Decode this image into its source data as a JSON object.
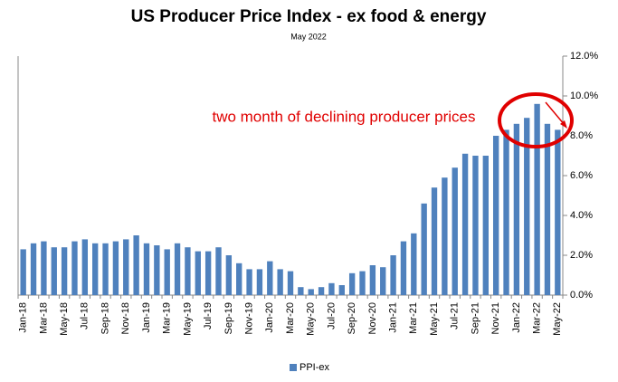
{
  "chart_data": {
    "type": "bar",
    "title": "US Producer Price Index - ex food & energy",
    "subtitle": "May 2022",
    "annotation": "two month of declining producer prices",
    "categories": [
      "Jan-18",
      null,
      "Mar-18",
      null,
      "May-18",
      null,
      "Jul-18",
      null,
      "Sep-18",
      null,
      "Nov-18",
      null,
      "Jan-19",
      null,
      "Mar-19",
      null,
      "May-19",
      null,
      "Jul-19",
      null,
      "Sep-19",
      null,
      "Nov-19",
      null,
      "Jan-20",
      null,
      "Mar-20",
      null,
      "May-20",
      null,
      "Jul-20",
      null,
      "Sep-20",
      null,
      "Nov-20",
      null,
      "Jan-21",
      null,
      "Mar-21",
      null,
      "May-21",
      null,
      "Jul-21",
      null,
      "Sep-21",
      null,
      "Nov-21",
      null,
      "Jan-22",
      null,
      "Mar-22",
      null,
      "May-22"
    ],
    "series": [
      {
        "name": "PPI-ex",
        "color": "#4f81bd",
        "values": [
          2.3,
          2.6,
          2.7,
          2.4,
          2.4,
          2.7,
          2.8,
          2.6,
          2.6,
          2.7,
          2.8,
          3.0,
          2.6,
          2.5,
          2.3,
          2.6,
          2.4,
          2.2,
          2.2,
          2.4,
          2.0,
          1.6,
          1.3,
          1.3,
          1.7,
          1.3,
          1.2,
          0.4,
          0.3,
          0.4,
          0.6,
          0.5,
          1.1,
          1.2,
          1.5,
          1.4,
          2.0,
          2.7,
          3.1,
          4.6,
          5.4,
          5.9,
          6.4,
          7.1,
          7.0,
          7.0,
          8.0,
          8.3,
          8.6,
          8.9,
          9.6,
          8.6,
          8.3
        ]
      }
    ],
    "ylim": [
      0,
      12
    ],
    "yticks": [
      {
        "value": 0,
        "label": "0.0%"
      },
      {
        "value": 2,
        "label": "2.0%"
      },
      {
        "value": 4,
        "label": "4.0%"
      },
      {
        "value": 6,
        "label": "6.0%"
      },
      {
        "value": 8,
        "label": "8.0%"
      },
      {
        "value": 10,
        "label": "10.0%"
      },
      {
        "value": 12,
        "label": "12.0%"
      }
    ],
    "grid": false,
    "legend": "bottom"
  }
}
